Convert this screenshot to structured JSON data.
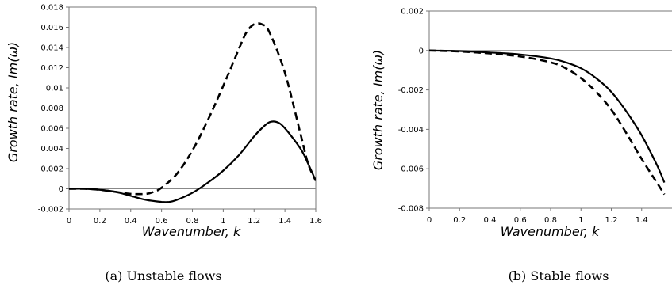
{
  "chart_data": [
    {
      "type": "line",
      "caption": "(a) Unstable flows",
      "xlabel": "Wavenumber, k",
      "ylabel": "Growth rate, Im(ω)",
      "xlim": [
        0,
        1.6
      ],
      "ylim": [
        -0.002,
        0.018
      ],
      "x_ticks": [
        "0",
        "0.2",
        "0.4",
        "0.6",
        "0.8",
        "1",
        "1.2",
        "1.4",
        "1.6"
      ],
      "y_ticks": [
        "-0.002",
        "0",
        "0.002",
        "0.004",
        "0.006",
        "0.008",
        "0.01",
        "0.012",
        "0.014",
        "0.016",
        "0.018"
      ],
      "grid": false,
      "zero_line": true,
      "series": [
        {
          "style": "solid",
          "x": [
            0,
            0.1,
            0.2,
            0.3,
            0.4,
            0.5,
            0.6,
            0.65,
            0.7,
            0.8,
            0.9,
            1.0,
            1.1,
            1.2,
            1.25,
            1.3,
            1.35,
            1.4,
            1.5,
            1.55,
            1.6
          ],
          "y": [
            0,
            0,
            -0.0001,
            -0.0003,
            -0.0007,
            -0.0011,
            -0.0013,
            -0.0013,
            -0.0011,
            -0.0004,
            0.0006,
            0.0018,
            0.0033,
            0.0052,
            0.006,
            0.0066,
            0.0066,
            0.006,
            0.004,
            0.0025,
            0.0008
          ]
        },
        {
          "style": "dashed",
          "x": [
            0,
            0.1,
            0.2,
            0.3,
            0.4,
            0.5,
            0.55,
            0.6,
            0.7,
            0.8,
            0.9,
            1.0,
            1.1,
            1.15,
            1.2,
            1.25,
            1.3,
            1.4,
            1.5,
            1.55,
            1.6
          ],
          "y": [
            0,
            0,
            -0.0001,
            -0.0003,
            -0.0005,
            -0.0005,
            -0.0003,
            0.0001,
            0.0015,
            0.0038,
            0.0068,
            0.0102,
            0.0138,
            0.0155,
            0.0163,
            0.0163,
            0.0155,
            0.0115,
            0.0055,
            0.0025,
            0.0008
          ]
        }
      ]
    },
    {
      "type": "line",
      "caption": "(b) Stable flows",
      "xlabel": "Wavenumber, k",
      "ylabel": "Growth rate, Im(ω)",
      "xlim": [
        0,
        1.6
      ],
      "ylim": [
        -0.008,
        0.002
      ],
      "x_ticks": [
        "0",
        "0.2",
        "0.4",
        "0.6",
        "0.8",
        "1",
        "1.2",
        "1.4"
      ],
      "y_ticks": [
        "-0.008",
        "-0.006",
        "-0.004",
        "-0.002",
        "0",
        "0.002"
      ],
      "grid": false,
      "zero_line": true,
      "series": [
        {
          "style": "solid",
          "x": [
            0,
            0.2,
            0.4,
            0.6,
            0.8,
            0.9,
            1.0,
            1.1,
            1.2,
            1.3,
            1.4,
            1.5,
            1.55
          ],
          "y": [
            0,
            -3e-05,
            -0.0001,
            -0.0002,
            -0.0004,
            -0.0006,
            -0.0009,
            -0.0014,
            -0.0021,
            -0.0031,
            -0.0043,
            -0.0058,
            -0.0067
          ]
        },
        {
          "style": "dashed",
          "x": [
            0,
            0.2,
            0.4,
            0.6,
            0.8,
            0.9,
            1.0,
            1.1,
            1.2,
            1.3,
            1.4,
            1.5,
            1.55
          ],
          "y": [
            0,
            -5e-05,
            -0.00015,
            -0.0003,
            -0.0006,
            -0.0009,
            -0.0014,
            -0.0021,
            -0.003,
            -0.0042,
            -0.0055,
            -0.0067,
            -0.0073
          ]
        }
      ]
    }
  ]
}
